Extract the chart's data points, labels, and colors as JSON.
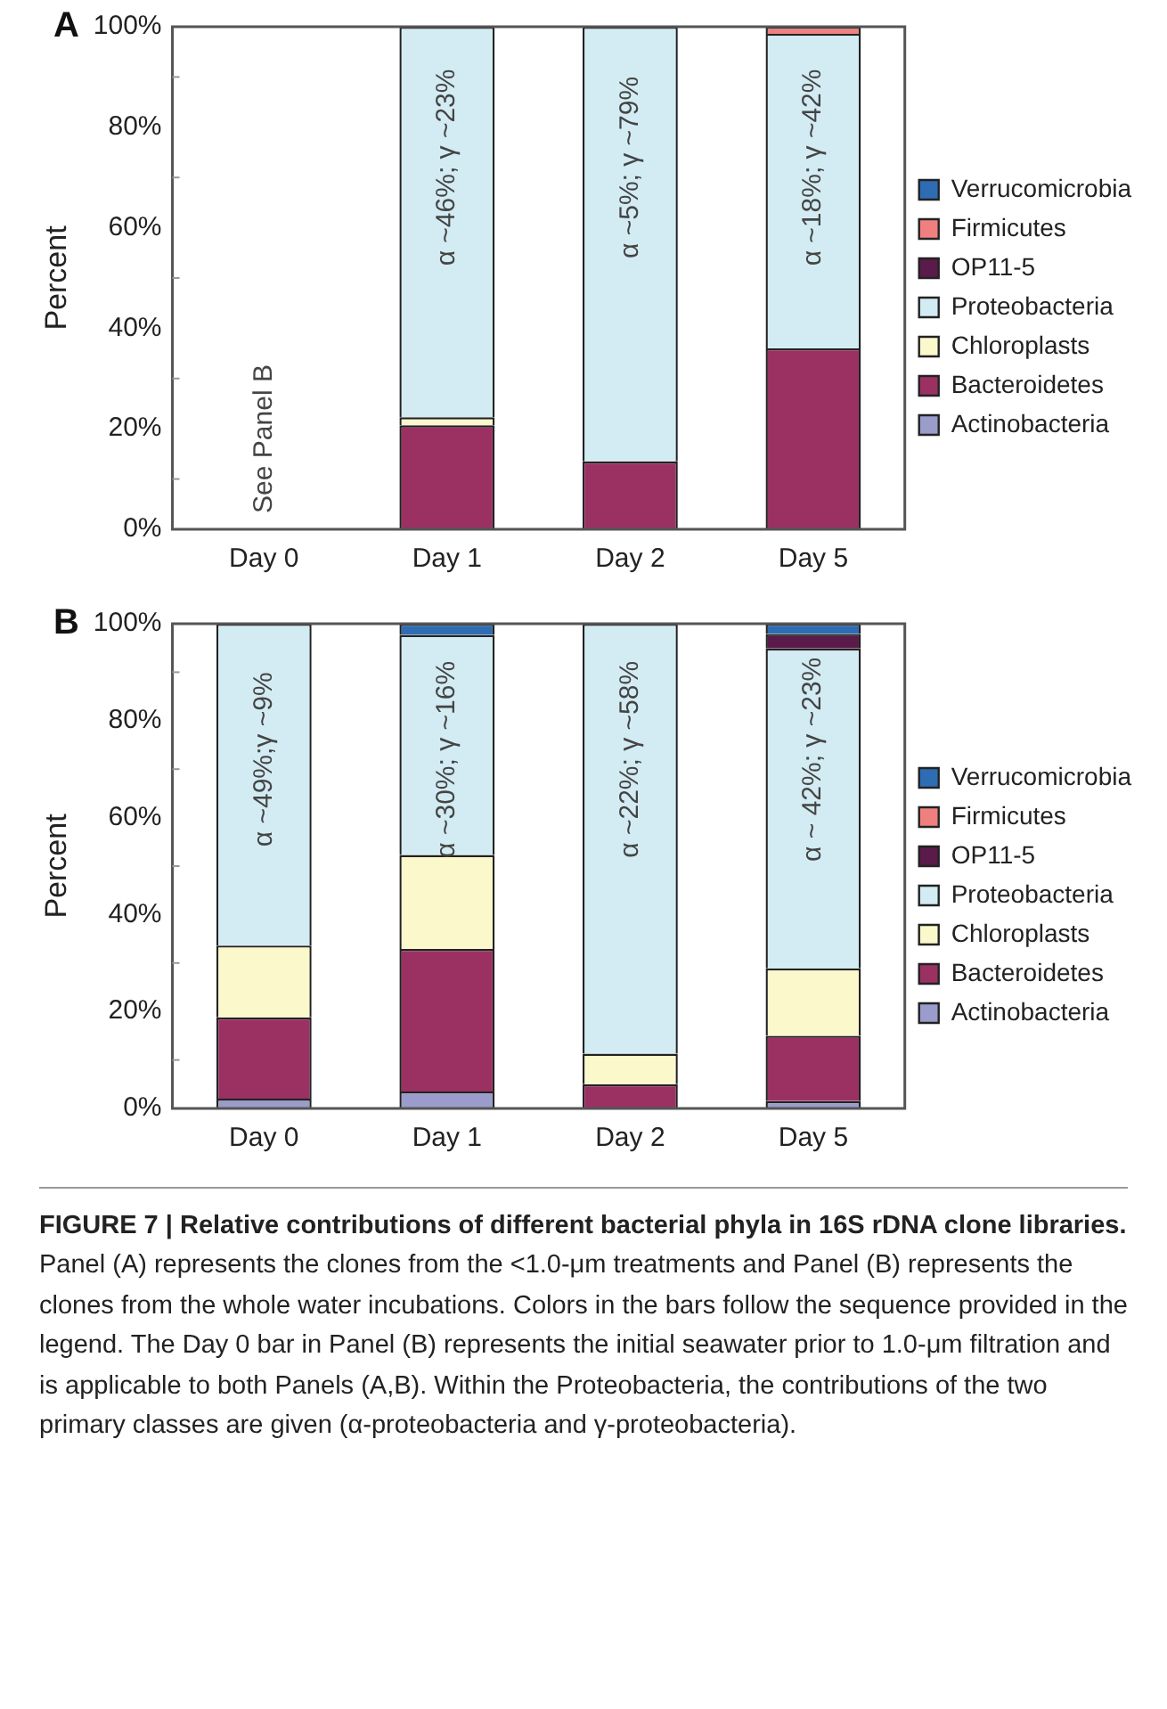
{
  "chart_data": [
    {
      "type": "bar",
      "title": "A",
      "ylabel": "Percent",
      "categories": [
        "Day 0",
        "Day 1",
        "Day 2",
        "Day 5"
      ],
      "stacked": true,
      "ylim": [
        0,
        100
      ],
      "yticks": [
        {
          "value": 0,
          "label": "0%"
        },
        {
          "value": 20,
          "label": "20%"
        },
        {
          "value": 40,
          "label": "40%"
        },
        {
          "value": 60,
          "label": "60%"
        },
        {
          "value": 80,
          "label": "80%"
        },
        {
          "value": 100,
          "label": "100%"
        }
      ],
      "grid": false,
      "legend": "right",
      "series": [
        {
          "name": "Actinobacteria",
          "color": "#9a9ccb",
          "values": [
            null,
            0,
            0,
            0
          ]
        },
        {
          "name": "Bacteroidetes",
          "color": "#9b3163",
          "values": [
            null,
            20.7,
            13.5,
            36
          ]
        },
        {
          "name": "Chloroplasts",
          "color": "#fbf8cc",
          "values": [
            null,
            1.6,
            0,
            0
          ]
        },
        {
          "name": "Proteobacteria",
          "color": "#d3ecf3",
          "values": [
            null,
            77.7,
            86.5,
            62.6
          ]
        },
        {
          "name": "OP11-5",
          "color": "#5a1a4a",
          "values": [
            null,
            0,
            0,
            0
          ]
        },
        {
          "name": "Firmicutes",
          "color": "#f08080",
          "values": [
            null,
            0,
            0,
            1.4
          ]
        },
        {
          "name": "Verrucomicrobia",
          "color": "#2e6db4",
          "values": [
            null,
            0,
            0,
            0
          ]
        }
      ],
      "annotations": [
        "See Panel B",
        "α ~46%; γ ~23%",
        "α ~5%; γ ~79%",
        "α ~18%; γ ~42%"
      ]
    },
    {
      "type": "bar",
      "title": "B",
      "ylabel": "Percent",
      "categories": [
        "Day 0",
        "Day 1",
        "Day 2",
        "Day 5"
      ],
      "stacked": true,
      "ylim": [
        0,
        100
      ],
      "yticks": [
        {
          "value": 0,
          "label": "0%"
        },
        {
          "value": 20,
          "label": "20%"
        },
        {
          "value": 40,
          "label": "40%"
        },
        {
          "value": 60,
          "label": "60%"
        },
        {
          "value": 80,
          "label": "80%"
        },
        {
          "value": 100,
          "label": "100%"
        }
      ],
      "grid": false,
      "legend": "right",
      "series": [
        {
          "name": "Actinobacteria",
          "color": "#9a9ccb",
          "values": [
            2,
            3.5,
            0,
            1.5
          ]
        },
        {
          "name": "Bacteroidetes",
          "color": "#9b3163",
          "values": [
            16.8,
            29.4,
            5,
            13.5
          ]
        },
        {
          "name": "Chloroplasts",
          "color": "#fbf8cc",
          "values": [
            14.8,
            19.4,
            6.3,
            13.9
          ]
        },
        {
          "name": "Proteobacteria",
          "color": "#d3ecf3",
          "values": [
            66.4,
            45.4,
            88.7,
            66
          ]
        },
        {
          "name": "OP11-5",
          "color": "#5a1a4a",
          "values": [
            0,
            0,
            0,
            3
          ]
        },
        {
          "name": "Firmicutes",
          "color": "#f08080",
          "values": [
            0,
            0,
            0,
            0
          ]
        },
        {
          "name": "Verrucomicrobia",
          "color": "#2e6db4",
          "values": [
            0,
            2.3,
            0,
            2.1
          ]
        }
      ],
      "annotations": [
        "α ~49%;γ ~9%",
        "α ~30%; γ ~16%",
        "α ~22%; γ ~58%",
        "α ~ 42%; γ ~23%",
        "FIGURE 7 | Relative contributions of different bacterial phyla in 16S rDNA clone libraries.",
        "Panel (A) represents the clones from the <1.0-μm treatments and Panel (B) represents the clones from the whole water incubations. Colors in the bars follow the sequence provided in the legend. The Day 0 bar in Panel (B) represents the initial seawater prior to 1.0-μm filtration and is applicable to both Panels (A,B). Within the Proteobacteria, the contributions of the two primary classes are given (α-proteobacteria and γ-proteobacteria)."
      ]
    }
  ]
}
